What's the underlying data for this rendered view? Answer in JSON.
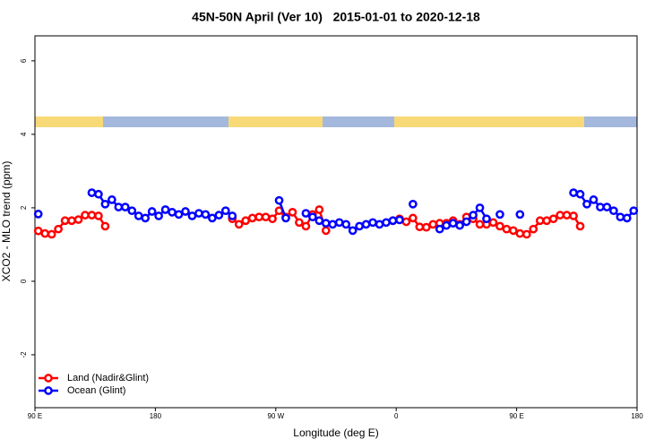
{
  "chart_data": {
    "type": "line",
    "title": "45N-50N April (Ver 10)   2015-01-01 to 2020-12-18",
    "xlabel": "Longitude (deg E)",
    "ylabel": "XCO2 - MLO trend (ppm)",
    "xlim": [
      90,
      540
    ],
    "ylim": [
      -3.44,
      6.68
    ],
    "xticks": [
      {
        "value": 90,
        "label": "90 E"
      },
      180,
      {
        "value": 270,
        "label": "90 W"
      },
      {
        "value": 360,
        "label": "0"
      },
      {
        "value": 450,
        "label": "90 E"
      },
      {
        "value": 540,
        "label": "180"
      }
    ],
    "yticks": [
      6,
      4,
      2,
      0,
      -2
    ],
    "legend": "bottom-left",
    "x": [
      92.5,
      97.5,
      102.5,
      107.5,
      112.5,
      117.5,
      122.5,
      127.5,
      132.5,
      137.5,
      142.5,
      147.5,
      152.5,
      157.5,
      162.5,
      167.5,
      172.5,
      177.5,
      182.5,
      187.5,
      192.5,
      197.5,
      202.5,
      207.5,
      212.5,
      217.5,
      222.5,
      227.5,
      232.5,
      237.5,
      242.5,
      247.5,
      252.5,
      257.5,
      262.5,
      267.5,
      272.5,
      277.5,
      282.5,
      287.5,
      292.5,
      297.5,
      302.5,
      307.5,
      312.5,
      317.5,
      322.5,
      327.5,
      332.5,
      337.5,
      342.5,
      347.5,
      352.5,
      357.5,
      362.5,
      367.5,
      372.5,
      377.5,
      382.5,
      387.5,
      392.5,
      397.5,
      402.5,
      407.5,
      412.5,
      417.5,
      422.5,
      427.5,
      432.5,
      437.5,
      442.5,
      447.5,
      452.5,
      457.5,
      462.5,
      467.5,
      472.5,
      477.5,
      482.5,
      487.5,
      492.5,
      497.5,
      502.5,
      507.5,
      512.5,
      517.5,
      522.5,
      527.5,
      532.5,
      537.5
    ],
    "series": [
      {
        "name": "Land (Nadir&Glint)",
        "color": "#ff0000",
        "values": [
          1.37,
          1.3,
          1.28,
          1.42,
          1.65,
          1.65,
          1.68,
          1.8,
          1.8,
          1.78,
          1.5,
          null,
          null,
          null,
          null,
          null,
          null,
          null,
          null,
          null,
          null,
          null,
          null,
          null,
          null,
          null,
          null,
          null,
          null,
          1.7,
          1.55,
          1.65,
          1.72,
          1.75,
          1.75,
          1.7,
          1.92,
          1.75,
          1.88,
          1.6,
          1.5,
          1.82,
          1.95,
          1.38,
          null,
          null,
          null,
          null,
          null,
          null,
          null,
          null,
          null,
          1.65,
          1.7,
          1.62,
          1.72,
          1.48,
          1.47,
          1.55,
          1.58,
          1.58,
          1.65,
          1.55,
          1.75,
          1.7,
          1.55,
          1.55,
          1.6,
          1.5,
          1.42,
          1.38,
          1.3,
          1.28,
          1.42,
          1.65,
          1.65,
          1.7,
          1.8,
          1.8,
          1.78,
          1.5,
          null,
          null,
          null,
          null,
          null,
          null,
          null,
          null
        ]
      },
      {
        "name": "Ocean (Glint)",
        "color": "#0000ff",
        "values": [
          1.83,
          null,
          null,
          null,
          null,
          null,
          null,
          null,
          2.41,
          2.37,
          2.1,
          2.22,
          2.02,
          2.02,
          1.92,
          1.78,
          1.72,
          1.9,
          1.78,
          1.95,
          1.88,
          1.82,
          1.9,
          1.78,
          1.85,
          1.82,
          1.72,
          1.8,
          1.92,
          1.78,
          null,
          null,
          null,
          null,
          null,
          null,
          2.2,
          1.72,
          null,
          null,
          1.85,
          1.75,
          1.65,
          1.58,
          1.55,
          1.6,
          1.55,
          1.38,
          1.5,
          1.55,
          1.6,
          1.55,
          1.6,
          1.65,
          1.67,
          null,
          2.1,
          null,
          null,
          null,
          1.42,
          1.52,
          1.58,
          1.52,
          1.62,
          1.8,
          2.0,
          1.7,
          null,
          1.82,
          null,
          null,
          1.82,
          null,
          null,
          null,
          null,
          null,
          null,
          null,
          2.41,
          2.37,
          2.1,
          2.22,
          2.02,
          2.02,
          1.92,
          1.75,
          1.72,
          1.92
        ]
      }
    ]
  }
}
